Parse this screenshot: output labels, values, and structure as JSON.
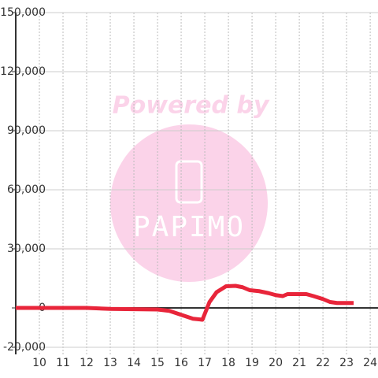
{
  "chart_data": {
    "type": "line",
    "watermark": [
      "Powered by",
      "PAPIMO"
    ],
    "x": [
      9,
      12,
      13,
      15,
      15.5,
      16,
      16.5,
      16.9,
      17.2,
      17.5,
      17.9,
      18.3,
      18.6,
      18.9,
      19.3,
      19.7,
      20,
      20.3,
      20.5,
      21,
      21.3,
      21.6,
      22,
      22.3,
      22.6,
      23,
      23.3
    ],
    "series": [
      {
        "color": "#e8253a",
        "values": [
          0,
          0,
          -500,
          -800,
          -1500,
          -3500,
          -5500,
          -6000,
          3000,
          8000,
          11000,
          11200,
          10500,
          9000,
          8500,
          7500,
          6500,
          6000,
          7000,
          7000,
          7000,
          6000,
          4500,
          3000,
          2500,
          2500,
          2500
        ]
      }
    ],
    "xlim": [
      9,
      24.33
    ],
    "xticks": [
      10,
      11,
      12,
      13,
      14,
      15,
      16,
      17,
      18,
      19,
      20,
      21,
      22,
      23,
      24
    ],
    "ylim": [
      -23600,
      150000
    ],
    "yticks": [
      {
        "value": 150000,
        "label": "150,000"
      },
      {
        "value": 120000,
        "label": "120,000"
      },
      {
        "value": 90000,
        "label": "90,000"
      },
      {
        "value": 60000,
        "label": "60,000"
      },
      {
        "value": 30000,
        "label": "30,000"
      },
      0,
      {
        "value": -20000,
        "label": "-20,000"
      }
    ],
    "grid": true
  }
}
